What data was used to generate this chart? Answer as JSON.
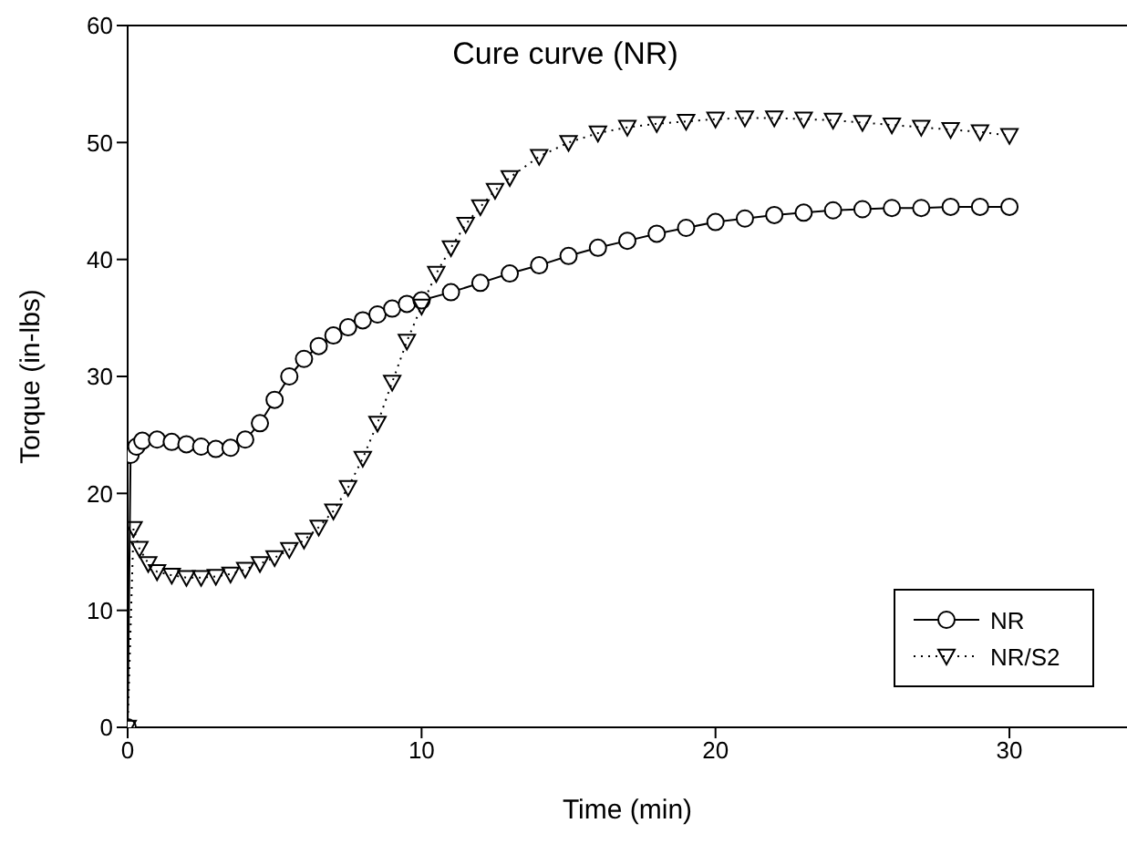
{
  "chart_data": {
    "type": "line",
    "title": "Cure curve (NR)",
    "xlabel": "Time (min)",
    "ylabel": "Torque (in-lbs)",
    "xlim": [
      0,
      34
    ],
    "xticks": [
      0,
      10,
      20,
      30
    ],
    "ylim": [
      0,
      60
    ],
    "yticks": [
      0,
      10,
      20,
      30,
      40,
      50,
      60
    ],
    "legend": "bottom right",
    "series": [
      {
        "name": "NR",
        "color": "#000000",
        "marker": "circle",
        "line_style": "solid",
        "x": [
          0,
          0.1,
          0.3,
          0.5,
          1,
          1.5,
          2,
          2.5,
          3,
          3.5,
          4,
          4.5,
          5,
          5.5,
          6,
          6.5,
          7,
          7.5,
          8,
          8.5,
          9,
          9.5,
          10,
          11,
          12,
          13,
          14,
          15,
          16,
          17,
          18,
          19,
          20,
          21,
          22,
          23,
          24,
          25,
          26,
          27,
          28,
          29,
          30
        ],
        "values": [
          0,
          23.3,
          24,
          24.5,
          24.6,
          24.4,
          24.2,
          24,
          23.8,
          23.9,
          24.6,
          26,
          28,
          30,
          31.5,
          32.6,
          33.5,
          34.2,
          34.8,
          35.3,
          35.8,
          36.2,
          36.5,
          37.2,
          38,
          38.8,
          39.5,
          40.3,
          41,
          41.6,
          42.2,
          42.7,
          43.2,
          43.5,
          43.8,
          44,
          44.2,
          44.3,
          44.4,
          44.4,
          44.5,
          44.5,
          44.5
        ]
      },
      {
        "name": "NR/S2",
        "color": "#000000",
        "marker": "triangle",
        "line_style": "dotted",
        "x": [
          0,
          0.2,
          0.4,
          0.7,
          1,
          1.5,
          2,
          2.5,
          3,
          3.5,
          4,
          4.5,
          5,
          5.5,
          6,
          6.5,
          7,
          7.5,
          8,
          8.5,
          9,
          9.5,
          10,
          10.5,
          11,
          11.5,
          12,
          12.5,
          13,
          14,
          15,
          16,
          17,
          18,
          19,
          20,
          21,
          22,
          23,
          24,
          25,
          26,
          27,
          28,
          29,
          30
        ],
        "values": [
          0,
          17,
          15.3,
          14,
          13.3,
          13,
          12.8,
          12.8,
          12.9,
          13.1,
          13.5,
          14,
          14.5,
          15.2,
          16,
          17.1,
          18.5,
          20.5,
          23,
          26,
          29.5,
          33,
          36,
          38.8,
          41,
          43,
          44.5,
          45.9,
          47,
          48.8,
          50,
          50.8,
          51.3,
          51.6,
          51.8,
          52,
          52.1,
          52.1,
          52,
          51.9,
          51.7,
          51.5,
          51.3,
          51.1,
          50.9,
          50.6
        ]
      }
    ]
  }
}
